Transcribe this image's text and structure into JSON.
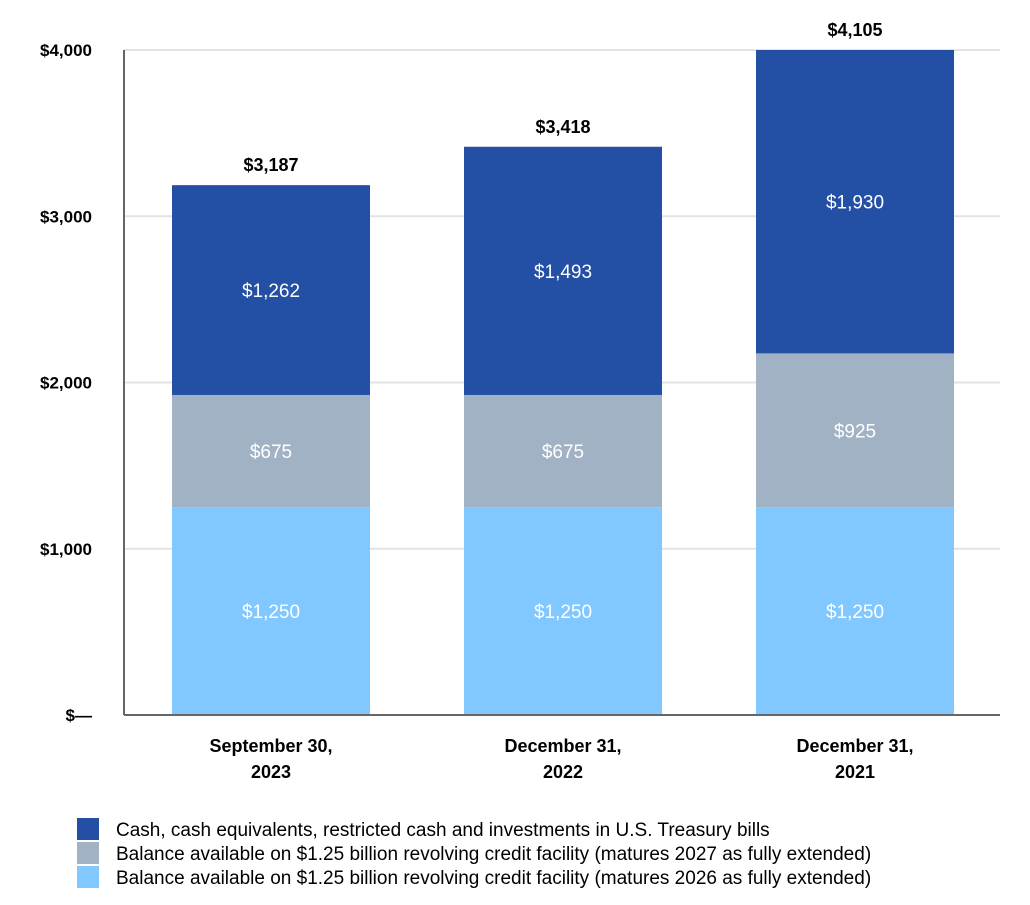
{
  "chart_data": {
    "type": "bar",
    "stacked": true,
    "categories": [
      [
        "September 30,",
        "2023"
      ],
      [
        "December 31,",
        "2022"
      ],
      [
        "December 31,",
        "2021"
      ]
    ],
    "series": [
      {
        "name": "Balance available on $1.25 billion revolving credit facility (matures 2026 as fully extended)",
        "color": "#80C8FF",
        "values": [
          1250,
          1250,
          1250
        ],
        "labels": [
          "$1,250",
          "$1,250",
          "$1,250"
        ]
      },
      {
        "name": "Balance available on $1.25 billion revolving credit facility (matures 2027 as fully extended)",
        "color": "#A0B2C4",
        "values": [
          675,
          675,
          925
        ],
        "labels": [
          "$675",
          "$675",
          "$925"
        ]
      },
      {
        "name": "Cash, cash equivalents, restricted cash and investments in U.S. Treasury bills",
        "color": "#234FA5",
        "values": [
          1262,
          1493,
          1930
        ],
        "labels": [
          "$1,262",
          "$1,493",
          "$1,930"
        ]
      }
    ],
    "totals": [
      "$3,187",
      "$3,418",
      "$4,105"
    ],
    "ylim": [
      0,
      4000
    ],
    "yticks": [
      {
        "value": 0,
        "label": "$—"
      },
      {
        "value": 1000,
        "label": "$1,000"
      },
      {
        "value": 2000,
        "label": "$2,000"
      },
      {
        "value": 3000,
        "label": "$3,000"
      },
      {
        "value": 4000,
        "label": "$4,000"
      }
    ],
    "grid": true,
    "legend_order": [
      2,
      1,
      0
    ],
    "legend_position": "bottom"
  }
}
